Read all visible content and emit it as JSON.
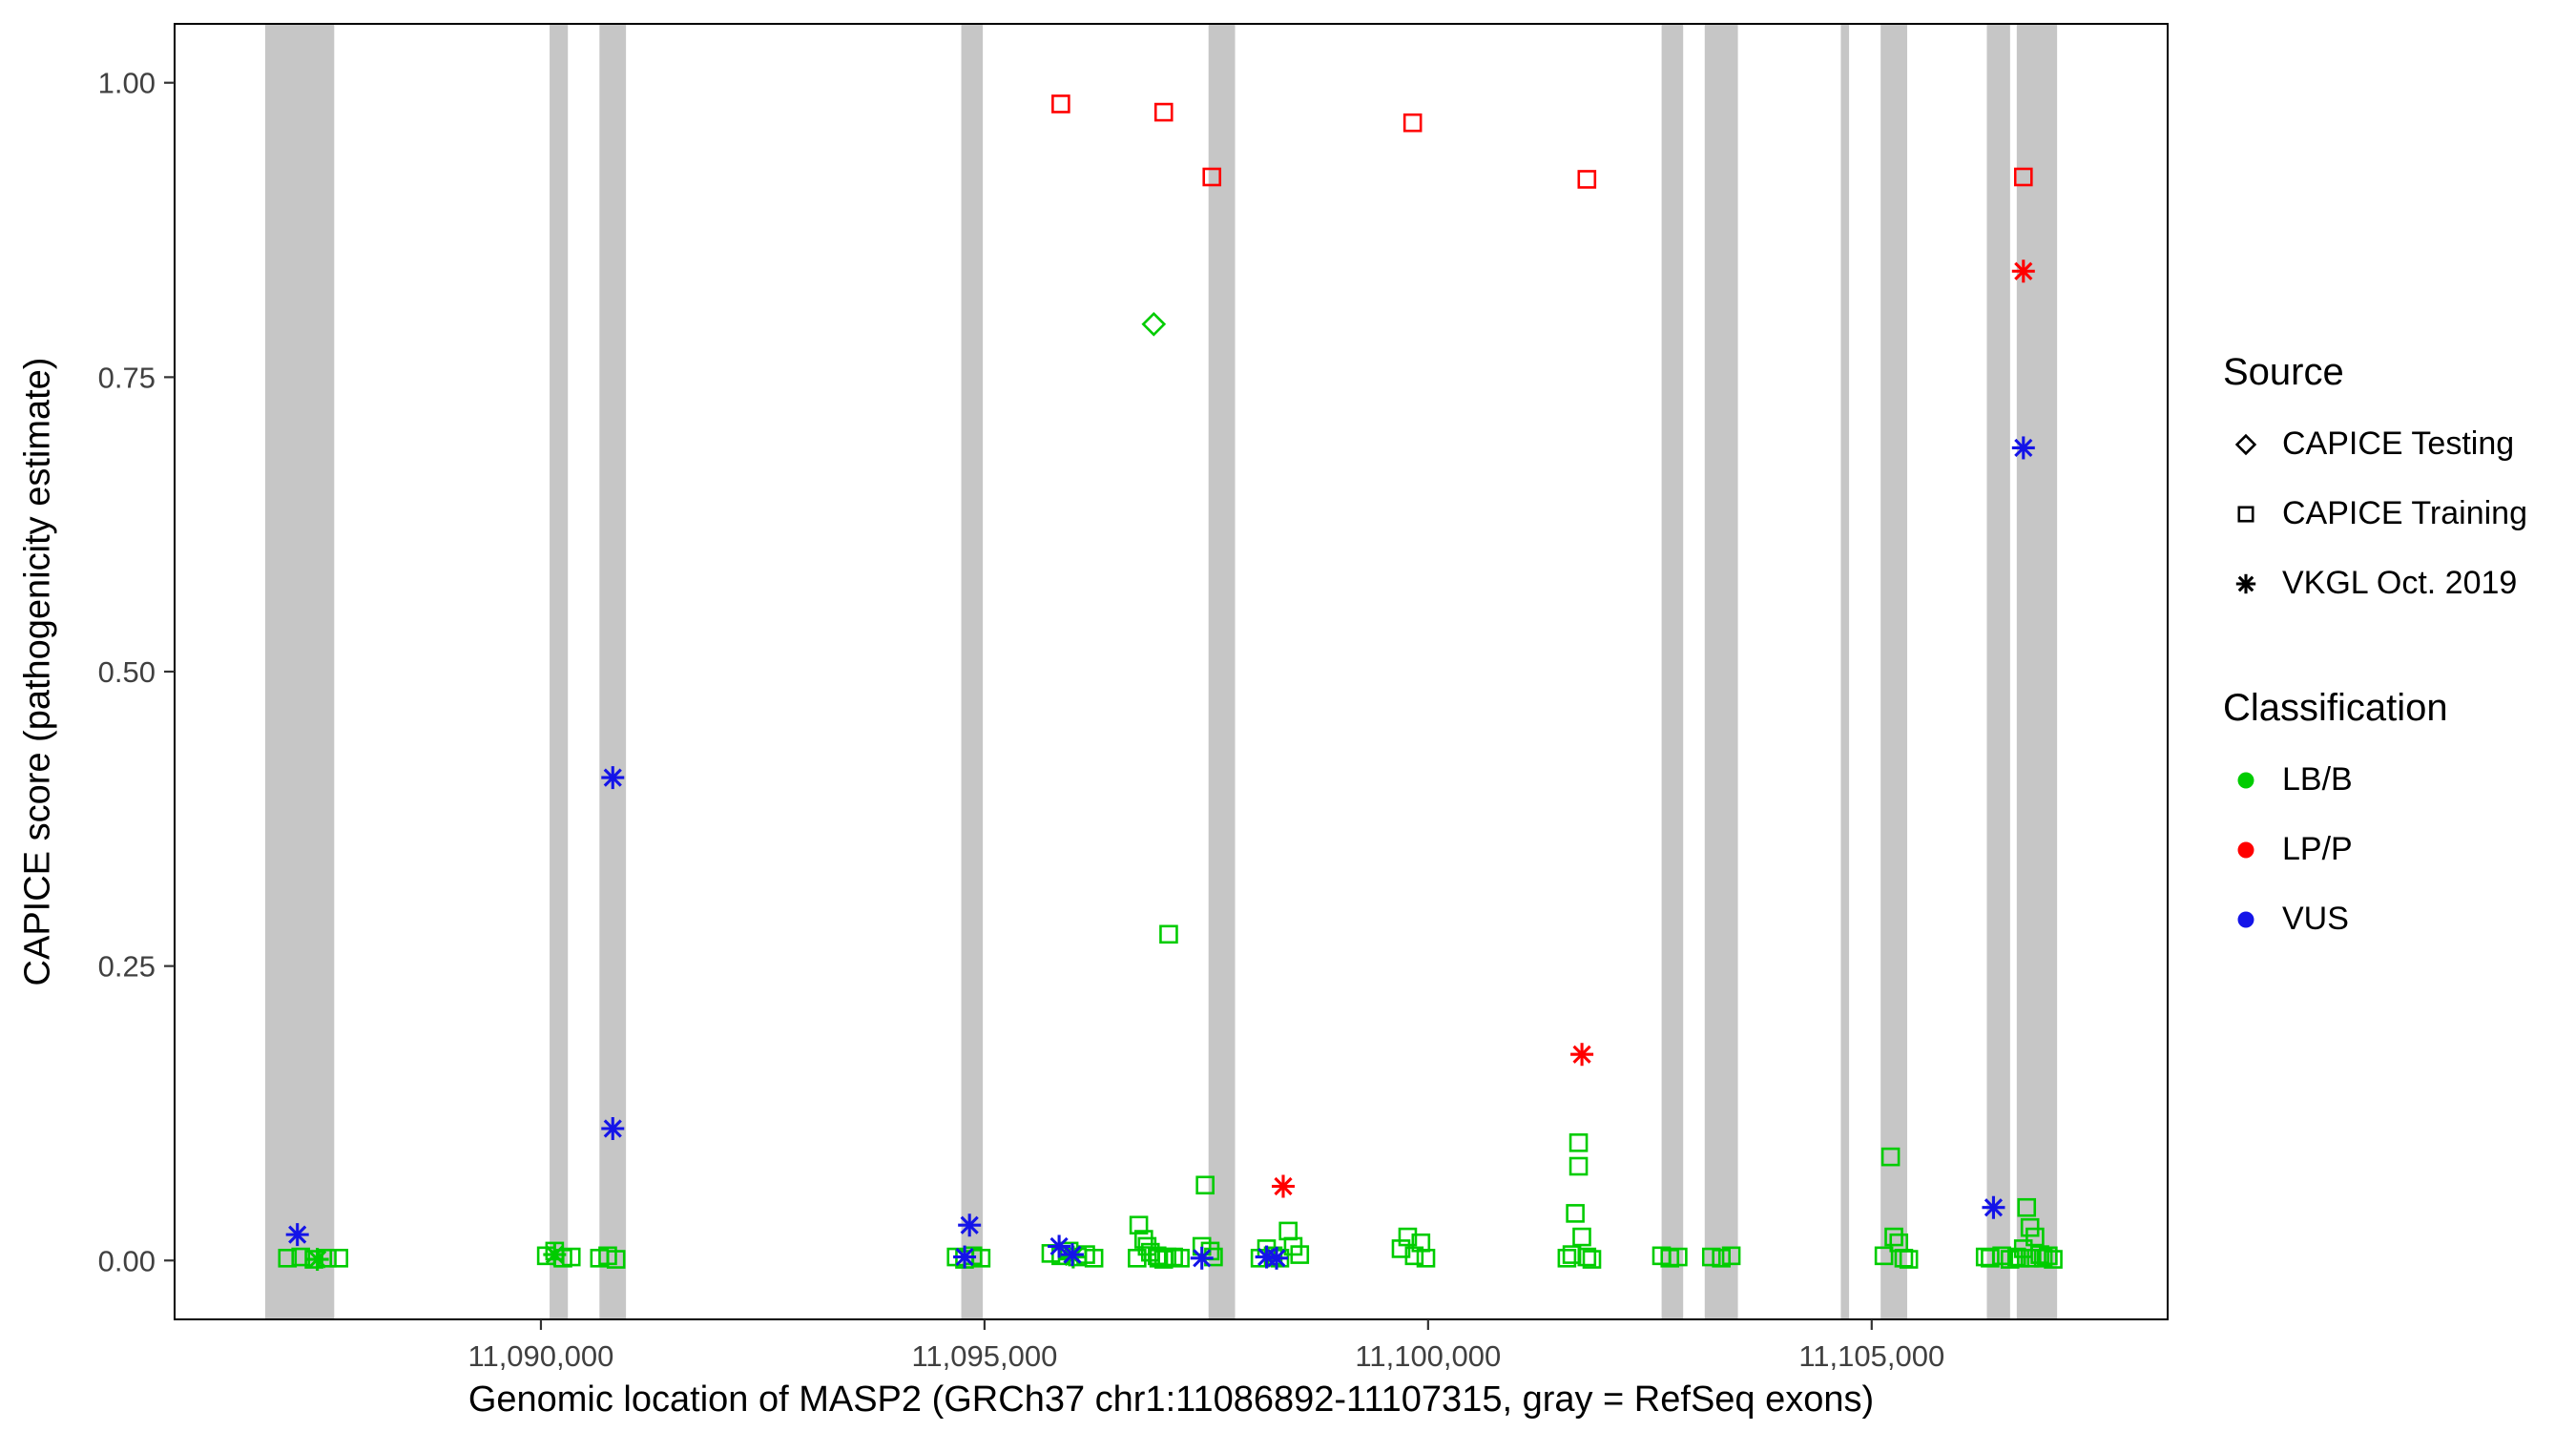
{
  "chart_data": {
    "type": "scatter",
    "title": "",
    "xlabel": "Genomic location of MASP2 (GRCh37 chr1:11086892-11107315, gray = RefSeq exons)",
    "ylabel": "CAPICE score (pathogenicity estimate)",
    "xlim": [
      11085871,
      11108336
    ],
    "ylim": [
      -0.05,
      1.05
    ],
    "grid": false,
    "legend_position": "right",
    "x_ticks": [
      {
        "value": 11090000,
        "label": "11,090,000"
      },
      {
        "value": 11095000,
        "label": "11,095,000"
      },
      {
        "value": 11100000,
        "label": "11,100,000"
      },
      {
        "value": 11105000,
        "label": "11,105,000"
      }
    ],
    "y_ticks": [
      {
        "value": 0.0,
        "label": "0.00"
      },
      {
        "value": 0.25,
        "label": "0.25"
      },
      {
        "value": 0.5,
        "label": "0.50"
      },
      {
        "value": 0.75,
        "label": "0.75"
      },
      {
        "value": 1.0,
        "label": "1.00"
      }
    ],
    "exon_color": "#C6C6C6",
    "exons": [
      {
        "start": 11086892,
        "end": 11087670
      },
      {
        "start": 11090098,
        "end": 11090304
      },
      {
        "start": 11090660,
        "end": 11090959
      },
      {
        "start": 11094738,
        "end": 11094981
      },
      {
        "start": 11097525,
        "end": 11097824
      },
      {
        "start": 11102632,
        "end": 11102875
      },
      {
        "start": 11103118,
        "end": 11103492
      },
      {
        "start": 11104652,
        "end": 11104745
      },
      {
        "start": 11105101,
        "end": 11105400
      },
      {
        "start": 11106298,
        "end": 11106560
      },
      {
        "start": 11106635,
        "end": 11107090
      }
    ],
    "colors": {
      "LB/B": "#00CC00",
      "LP/P": "#FF0000",
      "VUS": "#1414E8"
    },
    "legend": {
      "source_title": "Source",
      "source_items": [
        {
          "label": "CAPICE Testing",
          "shape": "diamond"
        },
        {
          "label": "CAPICE Training",
          "shape": "square"
        },
        {
          "label": "VKGL Oct. 2019",
          "shape": "asterisk"
        }
      ],
      "classification_title": "Classification",
      "classification_items": [
        {
          "label": "LB/B",
          "class": "LB/B"
        },
        {
          "label": "LP/P",
          "class": "LP/P"
        },
        {
          "label": "VUS",
          "class": "VUS"
        }
      ]
    },
    "series": [
      {
        "source": "CAPICE Training",
        "shape": "square",
        "class": "LB/B",
        "points": [
          [
            11087143,
            0.002
          ],
          [
            11087293,
            0.003
          ],
          [
            11087442,
            0.001
          ],
          [
            11087592,
            0.002
          ],
          [
            11087723,
            0.002
          ],
          [
            11090061,
            0.004
          ],
          [
            11090155,
            0.008
          ],
          [
            11090248,
            0.002
          ],
          [
            11090342,
            0.003
          ],
          [
            11090660,
            0.002
          ],
          [
            11090753,
            0.004
          ],
          [
            11090847,
            0.001
          ],
          [
            11094681,
            0.003
          ],
          [
            11094775,
            0.001
          ],
          [
            11094869,
            0.004
          ],
          [
            11094962,
            0.002
          ],
          [
            11095748,
            0.006
          ],
          [
            11095860,
            0.004
          ],
          [
            11095954,
            0.008
          ],
          [
            11096047,
            0.003
          ],
          [
            11096141,
            0.005
          ],
          [
            11096234,
            0.002
          ],
          [
            11096720,
            0.002
          ],
          [
            11096739,
            0.03
          ],
          [
            11096795,
            0.018
          ],
          [
            11096833,
            0.012
          ],
          [
            11096870,
            0.007
          ],
          [
            11096945,
            0.004
          ],
          [
            11096964,
            0.002
          ],
          [
            11097020,
            0.001
          ],
          [
            11097057,
            0.003
          ],
          [
            11097076,
            0.277
          ],
          [
            11097132,
            0.003
          ],
          [
            11097207,
            0.002
          ],
          [
            11097450,
            0.012
          ],
          [
            11097487,
            0.064
          ],
          [
            11097544,
            0.008
          ],
          [
            11097581,
            0.003
          ],
          [
            11098105,
            0.002
          ],
          [
            11098179,
            0.01
          ],
          [
            11098254,
            0.004
          ],
          [
            11098329,
            0.002
          ],
          [
            11098423,
            0.025
          ],
          [
            11098479,
            0.012
          ],
          [
            11098553,
            0.005
          ],
          [
            11099695,
            0.01
          ],
          [
            11099770,
            0.02
          ],
          [
            11099844,
            0.004
          ],
          [
            11099919,
            0.015
          ],
          [
            11099975,
            0.002
          ],
          [
            11101565,
            0.002
          ],
          [
            11101621,
            0.005
          ],
          [
            11101659,
            0.04
          ],
          [
            11101696,
            0.1
          ],
          [
            11101696,
            0.08
          ],
          [
            11101733,
            0.02
          ],
          [
            11101790,
            0.003
          ],
          [
            11101846,
            0.001
          ],
          [
            11102631,
            0.004
          ],
          [
            11102725,
            0.002
          ],
          [
            11102818,
            0.003
          ],
          [
            11103193,
            0.003
          ],
          [
            11103305,
            0.002
          ],
          [
            11103417,
            0.004
          ],
          [
            11105138,
            0.004
          ],
          [
            11105213,
            0.088
          ],
          [
            11105250,
            0.02
          ],
          [
            11105306,
            0.015
          ],
          [
            11105362,
            0.002
          ],
          [
            11105418,
            0.001
          ],
          [
            11106279,
            0.003
          ],
          [
            11106335,
            0.002
          ],
          [
            11106466,
            0.004
          ],
          [
            11106559,
            0.001
          ],
          [
            11106634,
            0.003
          ],
          [
            11106672,
            0.002
          ],
          [
            11106709,
            0.01
          ],
          [
            11106747,
            0.045
          ],
          [
            11106784,
            0.028
          ],
          [
            11106784,
            0.002
          ],
          [
            11106840,
            0.02
          ],
          [
            11106896,
            0.005
          ],
          [
            11106934,
            0.002
          ],
          [
            11106990,
            0.004
          ],
          [
            11107046,
            0.001
          ]
        ]
      },
      {
        "source": "VKGL Oct. 2019",
        "shape": "asterisk",
        "class": "LB/B",
        "points": [
          [
            11087480,
            0.001
          ],
          [
            11090155,
            0.005
          ],
          [
            11096000,
            0.003
          ]
        ]
      },
      {
        "source": "CAPICE Training",
        "shape": "square",
        "class": "LP/P",
        "points": [
          [
            11095860,
            0.982
          ],
          [
            11097020,
            0.975
          ],
          [
            11097563,
            0.92
          ],
          [
            11099826,
            0.966
          ],
          [
            11101790,
            0.918
          ],
          [
            11106710,
            0.92
          ]
        ]
      },
      {
        "source": "CAPICE Testing",
        "shape": "diamond",
        "class": "LB/B",
        "points": [
          [
            11096908,
            0.795
          ]
        ]
      },
      {
        "source": "VKGL Oct. 2019",
        "shape": "asterisk",
        "class": "LP/P",
        "points": [
          [
            11098367,
            0.063
          ],
          [
            11101734,
            0.175
          ],
          [
            11106710,
            0.84
          ]
        ]
      },
      {
        "source": "VKGL Oct. 2019",
        "shape": "asterisk",
        "class": "VUS",
        "points": [
          [
            11087255,
            0.022
          ],
          [
            11090810,
            0.41
          ],
          [
            11090810,
            0.112
          ],
          [
            11094831,
            0.03
          ],
          [
            11094776,
            0.003
          ],
          [
            11095841,
            0.012
          ],
          [
            11095990,
            0.005
          ],
          [
            11097450,
            0.002
          ],
          [
            11098180,
            0.003
          ],
          [
            11098292,
            0.002
          ],
          [
            11106373,
            0.045
          ],
          [
            11106710,
            0.69
          ]
        ]
      }
    ]
  }
}
